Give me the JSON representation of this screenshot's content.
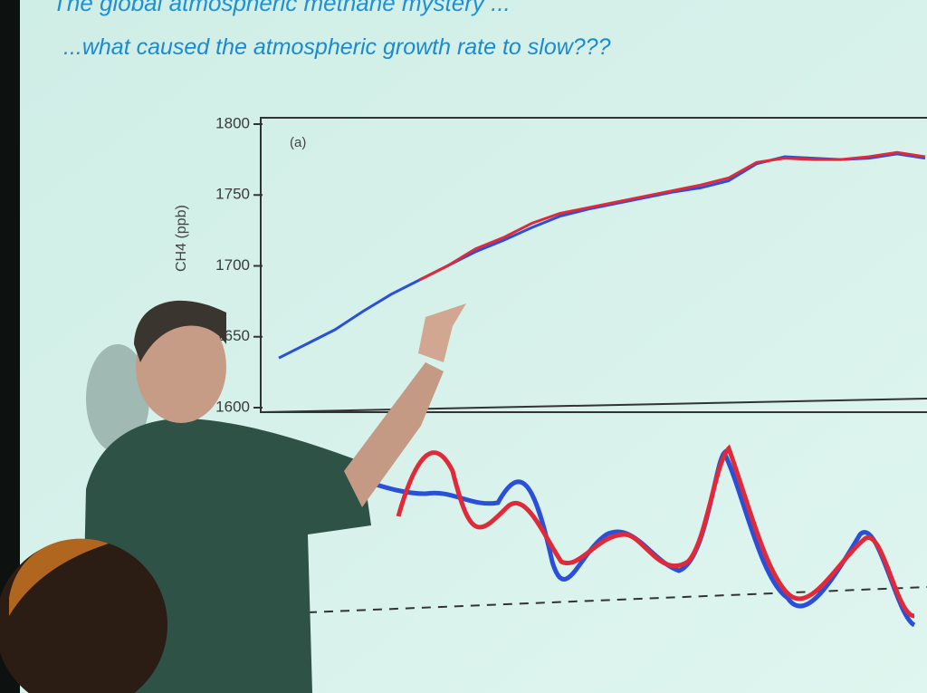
{
  "slide": {
    "title": "The global atmospheric methane mystery ...",
    "subtitle": "...what caused the atmospheric growth rate to slow???"
  },
  "chart_data": {
    "type": "line",
    "panel_label": "(a)",
    "ylabel": "CH4 (ppb)",
    "categories": [
      null,
      null,
      null,
      null,
      null,
      null,
      null,
      null,
      null,
      null,
      null,
      null,
      null,
      null,
      null,
      null,
      null,
      null,
      null,
      null,
      null,
      null,
      null,
      null
    ],
    "series": [
      {
        "name": "blue",
        "color": "#2a4fd8",
        "values": [
          1635,
          1645,
          1655,
          1668,
          1680,
          1690,
          1700,
          1710,
          1718,
          1727,
          1735,
          1740,
          1744,
          1748,
          1752,
          1755,
          1760,
          1772,
          1777,
          1776,
          1775,
          1776,
          1779,
          1776
        ]
      },
      {
        "name": "red",
        "color": "#e02a3a",
        "values": [
          null,
          null,
          null,
          null,
          null,
          1690,
          1700,
          1712,
          1720,
          1730,
          1737,
          1741,
          1745,
          1749,
          1753,
          1757,
          1762,
          1773,
          1776,
          1775,
          1775,
          1777,
          1780,
          1777
        ]
      }
    ],
    "ylim": [
      1600,
      1800
    ],
    "yticks": [
      1600,
      1650,
      1700,
      1750,
      1800
    ]
  }
}
